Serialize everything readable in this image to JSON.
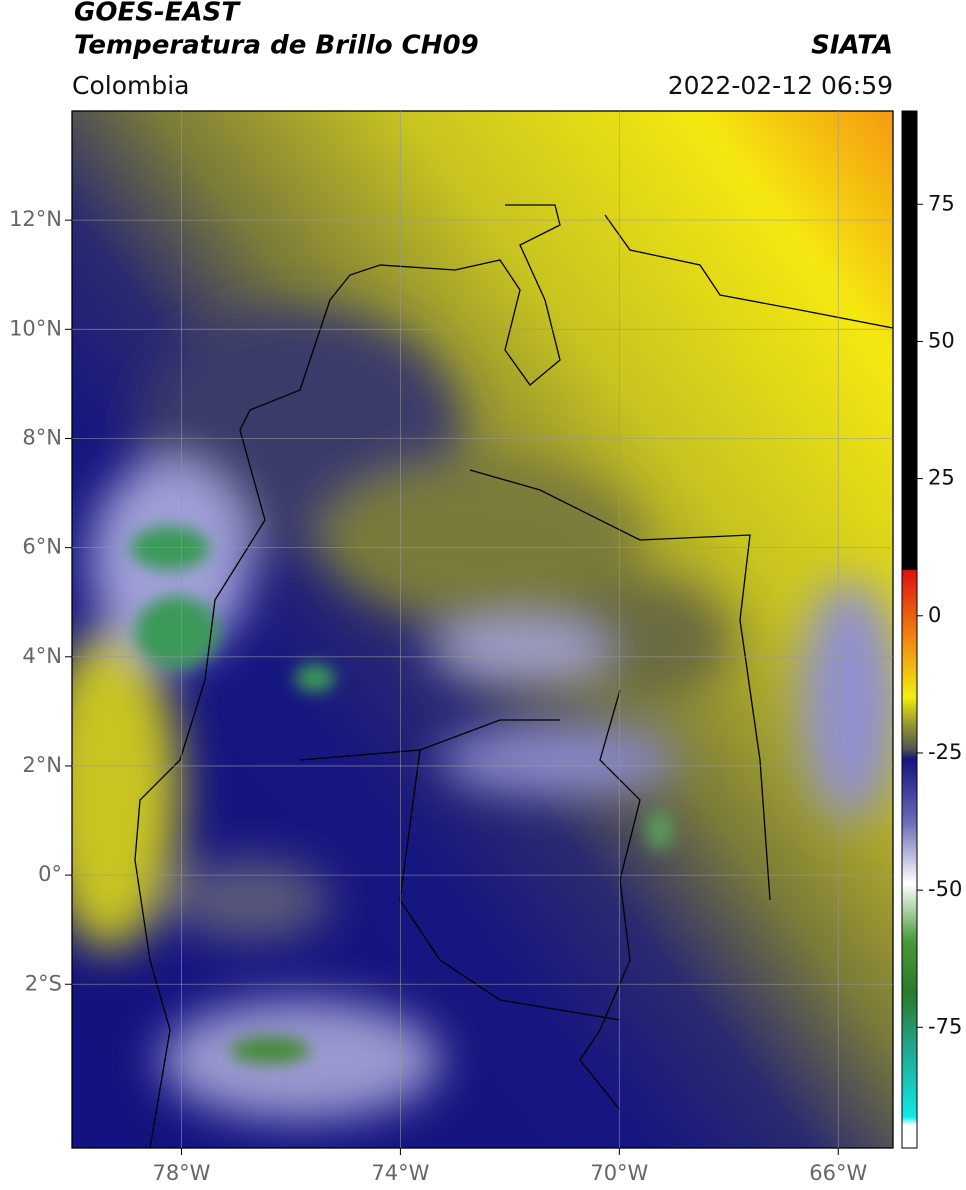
{
  "header": {
    "title_line1": "GOES-EAST",
    "title_line2": "Temperatura de Brillo CH09",
    "source": "SIATA",
    "region": "Colombia",
    "datetime": "2022-02-12 06:59"
  },
  "map": {
    "xlim": [
      -80,
      -65
    ],
    "ylim": [
      -5,
      14
    ],
    "xticks": [
      {
        "value": -78,
        "label": "78°W"
      },
      {
        "value": -74,
        "label": "74°W"
      },
      {
        "value": -70,
        "label": "70°W"
      },
      {
        "value": -66,
        "label": "66°W"
      }
    ],
    "yticks": [
      {
        "value": 12,
        "label": "12°N"
      },
      {
        "value": 10,
        "label": "10°N"
      },
      {
        "value": 8,
        "label": "8°N"
      },
      {
        "value": 6,
        "label": "6°N"
      },
      {
        "value": 4,
        "label": "4°N"
      },
      {
        "value": 2,
        "label": "2°N"
      },
      {
        "value": 0,
        "label": "0°"
      },
      {
        "value": -2,
        "label": "2°S"
      }
    ]
  },
  "colorbar": {
    "lim": [
      -97,
      92
    ],
    "ticks": [
      75,
      50,
      25,
      0,
      -25,
      -50,
      -75
    ]
  }
}
